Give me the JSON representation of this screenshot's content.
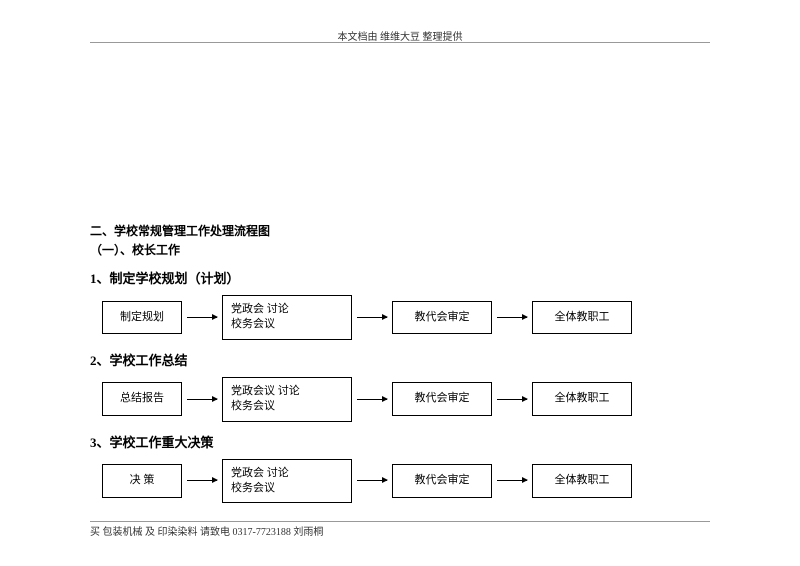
{
  "header": {
    "text": "本文档由  维维大豆  整理提供"
  },
  "footer": {
    "text": "买  包装机械  及  印染染料  请致电  0317-7723188     刘雨桐"
  },
  "section": {
    "title": "二、学校常规管理工作处理流程图",
    "subtitle": "（一）、校长工作"
  },
  "flows": [
    {
      "heading": "1、制定学校规划（计划）",
      "boxes": {
        "b1": "制定规划",
        "b2_line1": "党政会        讨论",
        "b2_line2": "校务会议",
        "b3": "教代会审定",
        "b4": "全体教职工"
      }
    },
    {
      "heading": "2、学校工作总结",
      "boxes": {
        "b1": "总结报告",
        "b2_line1": "党政会议      讨论",
        "b2_line2": "校务会议",
        "b3": "教代会审定",
        "b4": "全体教职工"
      }
    },
    {
      "heading": "3、学校工作重大决策",
      "boxes": {
        "b1": "决    策",
        "b2_line1": "党政会        讨论",
        "b2_line2": "校务会议",
        "b3": "教代会审定",
        "b4": "全体教职工"
      }
    }
  ],
  "style": {
    "page_bg": "#ffffff",
    "text_color": "#000000",
    "border_color": "#000000",
    "rule_color": "#999999",
    "body_fontsize": 11,
    "heading_fontsize": 13,
    "section_fontsize": 12
  }
}
